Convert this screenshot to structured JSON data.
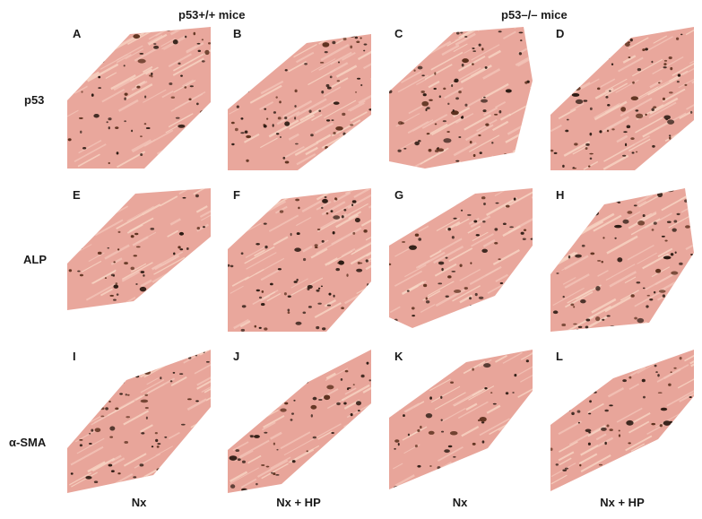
{
  "figure": {
    "group_titles": [
      "p53+/+ mice",
      "p53–/– mice"
    ],
    "row_labels": [
      "p53",
      "ALP",
      "α-SMA"
    ],
    "col_labels": [
      "Nx",
      "Nx + HP",
      "Nx",
      "Nx + HP"
    ],
    "panels": [
      {
        "letter": "A",
        "row": 0,
        "col": 0,
        "stain": "p53 immunohistochemistry",
        "density": 0.45
      },
      {
        "letter": "B",
        "row": 0,
        "col": 1,
        "stain": "p53 immunohistochemistry",
        "density": 0.55
      },
      {
        "letter": "C",
        "row": 0,
        "col": 2,
        "stain": "p53 immunohistochemistry",
        "density": 0.65
      },
      {
        "letter": "D",
        "row": 0,
        "col": 3,
        "stain": "p53 immunohistochemistry",
        "density": 0.8
      },
      {
        "letter": "E",
        "row": 1,
        "col": 0,
        "stain": "ALP immunohistochemistry",
        "density": 0.35
      },
      {
        "letter": "F",
        "row": 1,
        "col": 1,
        "stain": "ALP immunohistochemistry",
        "density": 0.55
      },
      {
        "letter": "G",
        "row": 1,
        "col": 2,
        "stain": "ALP immunohistochemistry",
        "density": 0.45
      },
      {
        "letter": "H",
        "row": 1,
        "col": 3,
        "stain": "ALP immunohistochemistry",
        "density": 0.6
      },
      {
        "letter": "I",
        "row": 2,
        "col": 0,
        "stain": "alpha-SMA immunohistochemistry",
        "density": 0.6
      },
      {
        "letter": "J",
        "row": 2,
        "col": 1,
        "stain": "alpha-SMA immunohistochemistry",
        "density": 0.65
      },
      {
        "letter": "K",
        "row": 2,
        "col": 2,
        "stain": "alpha-SMA immunohistochemistry",
        "density": 0.45
      },
      {
        "letter": "L",
        "row": 2,
        "col": 3,
        "stain": "alpha-SMA immunohistochemistry",
        "density": 0.55
      }
    ]
  },
  "colors": {
    "tissue": "#e9a79c",
    "tissue_light": "#f3c4b8",
    "fiber": "#f8d6c4",
    "nucleus": "#2a1a12",
    "nucleus_brown": "#5a2f1c",
    "background": "#ffffff"
  }
}
